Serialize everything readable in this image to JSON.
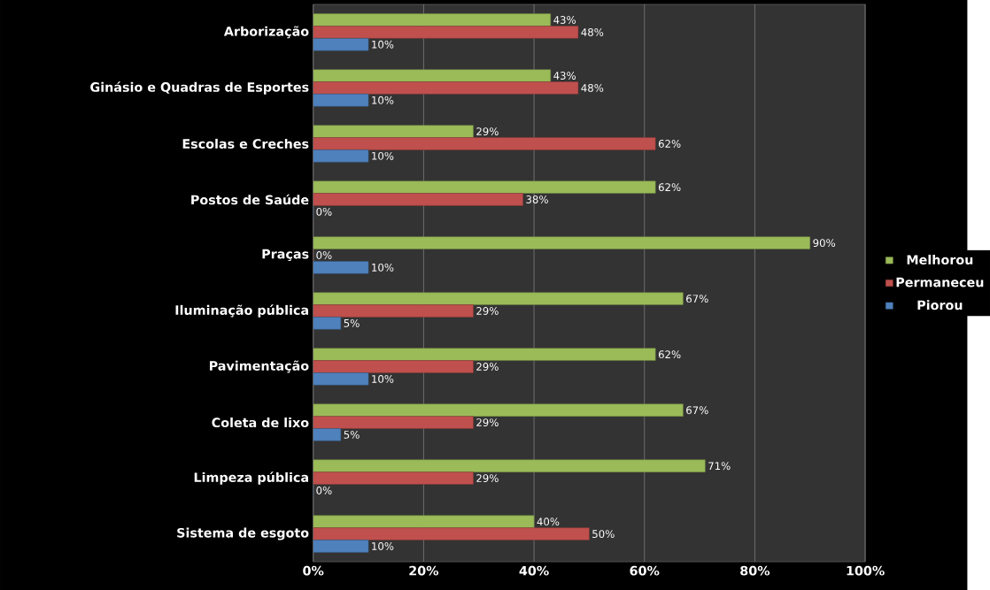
{
  "chart_data": {
    "type": "bar",
    "orientation": "horizontal",
    "categories": [
      "Arborização",
      "Ginásio e Quadras de Esportes",
      "Escolas e Creches",
      "Postos de Saúde",
      "Praças",
      "Iluminação pública",
      "Pavimentação",
      "Coleta de lixo",
      "Limpeza pública",
      "Sistema de esgoto"
    ],
    "series": [
      {
        "name": "Melhorou",
        "color": "#9bbb59",
        "values": [
          43,
          43,
          29,
          62,
          90,
          67,
          62,
          67,
          71,
          40
        ],
        "value_labels": [
          "43%",
          "43%",
          "29%",
          "62%",
          "90%",
          "67%",
          "62%",
          "67%",
          "71%",
          "40%"
        ]
      },
      {
        "name": "Permaneceu",
        "color": "#c0504d",
        "values": [
          48,
          48,
          62,
          38,
          0,
          29,
          29,
          29,
          29,
          50
        ],
        "value_labels": [
          "48%",
          "48%",
          "62%",
          "38%",
          "0%",
          "29%",
          "29%",
          "29%",
          "29%",
          "50%"
        ]
      },
      {
        "name": "Piorou",
        "color": "#4f81bd",
        "values": [
          10,
          10,
          10,
          0,
          10,
          5,
          10,
          5,
          0,
          10
        ],
        "value_labels": [
          "10%",
          "10%",
          "10%",
          "0%",
          "10%",
          "5%",
          "10%",
          "5%",
          "0%",
          "10%"
        ]
      }
    ],
    "xlim": [
      0,
      100
    ],
    "xticks": [
      {
        "value": 0,
        "label": "0%"
      },
      {
        "value": 20,
        "label": "20%"
      },
      {
        "value": 40,
        "label": "40%"
      },
      {
        "value": 60,
        "label": "60%"
      },
      {
        "value": 80,
        "label": "80%"
      },
      {
        "value": 100,
        "label": "100%"
      }
    ],
    "grid": "x",
    "legend": "right"
  }
}
